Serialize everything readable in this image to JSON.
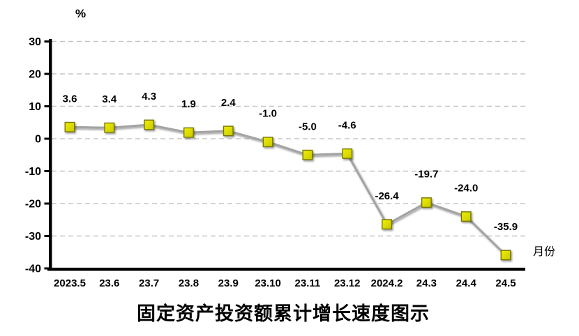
{
  "chart_data": {
    "type": "line",
    "title": "固定资产投资额累计增长速度图示",
    "unit_label": "%",
    "x_axis_label": "月份",
    "categories": [
      "2023.5",
      "23.6",
      "23.7",
      "23.8",
      "23.9",
      "23.10",
      "23.11",
      "23.12",
      "2024.2",
      "24.3",
      "24.4",
      "24.5"
    ],
    "values": [
      3.6,
      3.4,
      4.3,
      1.9,
      2.4,
      -1.0,
      -5.0,
      -4.6,
      -26.4,
      -19.7,
      -24.0,
      -35.9
    ],
    "data_labels": [
      "3.6",
      "3.4",
      "4.3",
      "1.9",
      "2.4",
      "-1.0",
      "-5.0",
      "-4.6",
      "-26.4",
      "-19.7",
      "-24.0",
      "-35.9"
    ],
    "y_ticks": [
      30,
      20,
      10,
      0,
      -10,
      -20,
      -30,
      -40
    ],
    "ylim": [
      -40,
      30
    ],
    "grid": true,
    "legend_position": "none",
    "colors": {
      "line": "#a3a3a3",
      "marker_fill_light": "#efef00",
      "marker_fill_dark": "#c9c900",
      "marker_border": "#767600",
      "gridline": "#c6c6c6",
      "axis": "#000000",
      "background": "#ffffff"
    }
  }
}
